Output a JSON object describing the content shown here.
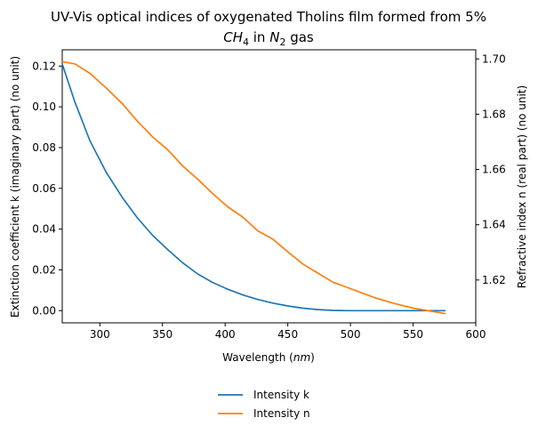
{
  "chart_data": {
    "type": "line",
    "title_line1": "UV-Vis optical indices of oxygenated Tholins film formed from 5%",
    "title_line2_math": "CH",
    "title_line2_sub": "4",
    "title_line2_mid": " in ",
    "title_line2_math2": "N",
    "title_line2_sub2": "2",
    "title_line2_end": " gas",
    "xlabel_text": "Wavelength (",
    "xlabel_unit": "nm",
    "xlabel_end": ")",
    "ylabel_left": "Extinction coefficient k (imaginary part) (no unit)",
    "ylabel_right": "Refractive index n (real part) (no unit)",
    "xlim": [
      270,
      600
    ],
    "ylim_left": [
      -0.006,
      0.128
    ],
    "ylim_right": [
      1.6045,
      1.7033
    ],
    "x_ticks": [
      "300",
      "350",
      "400",
      "450",
      "500",
      "550",
      "600"
    ],
    "x_tick_values": [
      300,
      350,
      400,
      450,
      500,
      550,
      600
    ],
    "y_left_ticks": [
      "0.00",
      "0.02",
      "0.04",
      "0.06",
      "0.08",
      "0.10",
      "0.12"
    ],
    "y_left_tick_values": [
      0.0,
      0.02,
      0.04,
      0.06,
      0.08,
      0.1,
      0.12
    ],
    "y_right_ticks": [
      "1.62",
      "1.64",
      "1.66",
      "1.68",
      "1.70"
    ],
    "y_right_tick_values": [
      1.62,
      1.64,
      1.66,
      1.68,
      1.7
    ],
    "legend_position": "bottom-center",
    "series": [
      {
        "name": "Intensity k",
        "color": "#1f77b4",
        "axis": "left",
        "x": [
          270,
          280,
          292,
          305,
          318,
          330,
          342,
          354,
          366,
          378,
          390,
          402,
          414,
          426,
          438,
          450,
          462,
          474,
          486,
          498,
          510,
          530,
          550,
          576
        ],
        "y": [
          0.121,
          0.1025,
          0.0835,
          0.068,
          0.0555,
          0.0455,
          0.037,
          0.03,
          0.0235,
          0.018,
          0.0138,
          0.0105,
          0.0077,
          0.0055,
          0.0037,
          0.0023,
          0.0012,
          0.0005,
          0.0001,
          0.0,
          0.0,
          0.0,
          0.0,
          0.0
        ]
      },
      {
        "name": "Intensity n",
        "color": "#ff7f0e",
        "axis": "right",
        "x": [
          270,
          280,
          292,
          305,
          318,
          330,
          342,
          354,
          366,
          378,
          390,
          402,
          414,
          426,
          438,
          450,
          462,
          474,
          486,
          498,
          510,
          520,
          535,
          550,
          576
        ],
        "y": [
          1.699,
          1.6982,
          1.6948,
          1.6895,
          1.6838,
          1.6775,
          1.6718,
          1.6672,
          1.6613,
          1.6565,
          1.6513,
          1.6465,
          1.6428,
          1.6378,
          1.6348,
          1.6302,
          1.6258,
          1.6225,
          1.6192,
          1.6172,
          1.6152,
          1.6135,
          1.6115,
          1.6098,
          1.6078
        ]
      }
    ]
  }
}
